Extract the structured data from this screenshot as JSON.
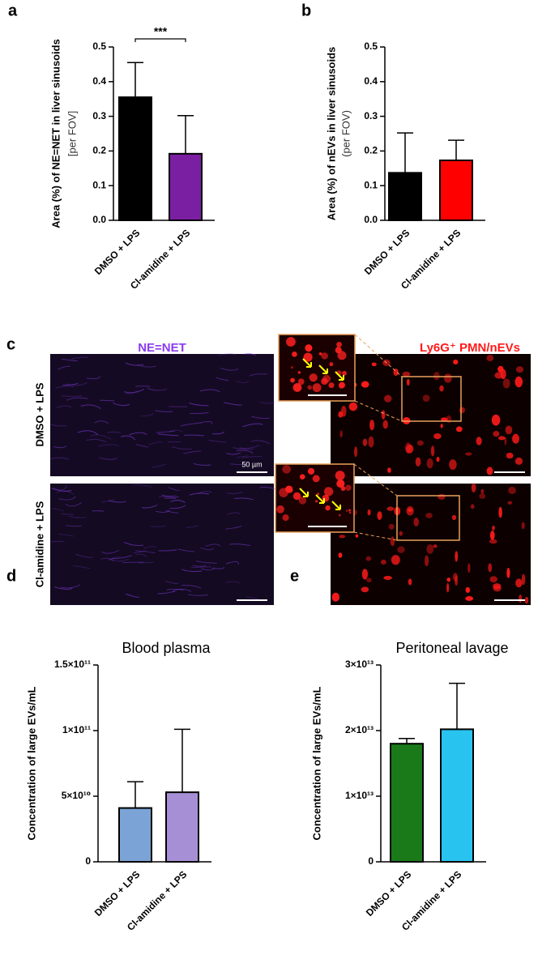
{
  "chart_data": [
    {
      "type": "bar",
      "panel": "a",
      "y_label": "Area (%) of NE=NET in liver sinusoids",
      "y_label_unit": "[per FOV]",
      "categories": [
        "DMSO + LPS",
        "Cl-amidine + LPS"
      ],
      "values": [
        0.355,
        0.192
      ],
      "errors": [
        0.1,
        0.11
      ],
      "colors": [
        "#000000",
        "#7b1fa2"
      ],
      "ylim": [
        0,
        0.5
      ],
      "yticks": [
        {
          "value": 0,
          "label": "0.0"
        },
        0.1,
        0.2,
        0.3,
        0.4,
        0.5
      ],
      "annotation": "***"
    },
    {
      "type": "bar",
      "panel": "b",
      "y_label": "Area (%) of nEVs in liver sinusoids",
      "y_label_unit": "(per FOV)",
      "categories": [
        "DMSO + LPS",
        "Cl-amidine + LPS"
      ],
      "values": [
        0.137,
        0.173
      ],
      "errors": [
        0.115,
        0.058
      ],
      "colors": [
        "#000000",
        "#ff0000"
      ],
      "ylim": [
        0,
        0.5
      ],
      "yticks": [
        {
          "value": 0,
          "label": "0.0"
        },
        0.1,
        0.2,
        0.3,
        0.4,
        0.5
      ]
    },
    {
      "type": "bar",
      "panel": "d",
      "title": "Blood plasma",
      "y_label": "Concentration of large EVs/mL",
      "categories": [
        "DMSO + LPS",
        "Cl-amidine + LPS"
      ],
      "values": [
        41000000000,
        53000000000
      ],
      "errors": [
        20000000000,
        48000000000
      ],
      "colors": [
        "#7ba3d6",
        "#a78fd6"
      ],
      "ylim": [
        0,
        150000000000
      ],
      "yticks": [
        0,
        {
          "value": 50000000000,
          "label": "5×10¹⁰"
        },
        {
          "value": 100000000000,
          "label": "1×10¹¹"
        },
        {
          "value": 150000000000,
          "label": "1.5×10¹¹"
        }
      ]
    },
    {
      "type": "bar",
      "panel": "e",
      "title": "Peritoneal lavage",
      "y_label": "Concentration of large EVs/mL",
      "categories": [
        "DMSO + LPS",
        "Cl-amidine + LPS"
      ],
      "values": [
        18000000000000,
        20200000000000
      ],
      "errors": [
        800000000000,
        7000000000000
      ],
      "colors": [
        "#1a7a1a",
        "#29c3f0"
      ],
      "ylim": [
        0,
        30000000000000
      ],
      "yticks": [
        0,
        {
          "value": 10000000000000,
          "label": "1×10¹³"
        },
        {
          "value": 20000000000000,
          "label": "2×10¹³"
        },
        {
          "value": 30000000000000,
          "label": "3×10¹³"
        }
      ]
    }
  ],
  "micrograph": {
    "panel": "c",
    "channels": [
      "NE=NET",
      "Ly6G⁺ PMN/nEVs"
    ],
    "rows": [
      "DMSO + LPS",
      "Cl-amidine + LPS"
    ],
    "scale_bar": "50 µm"
  }
}
